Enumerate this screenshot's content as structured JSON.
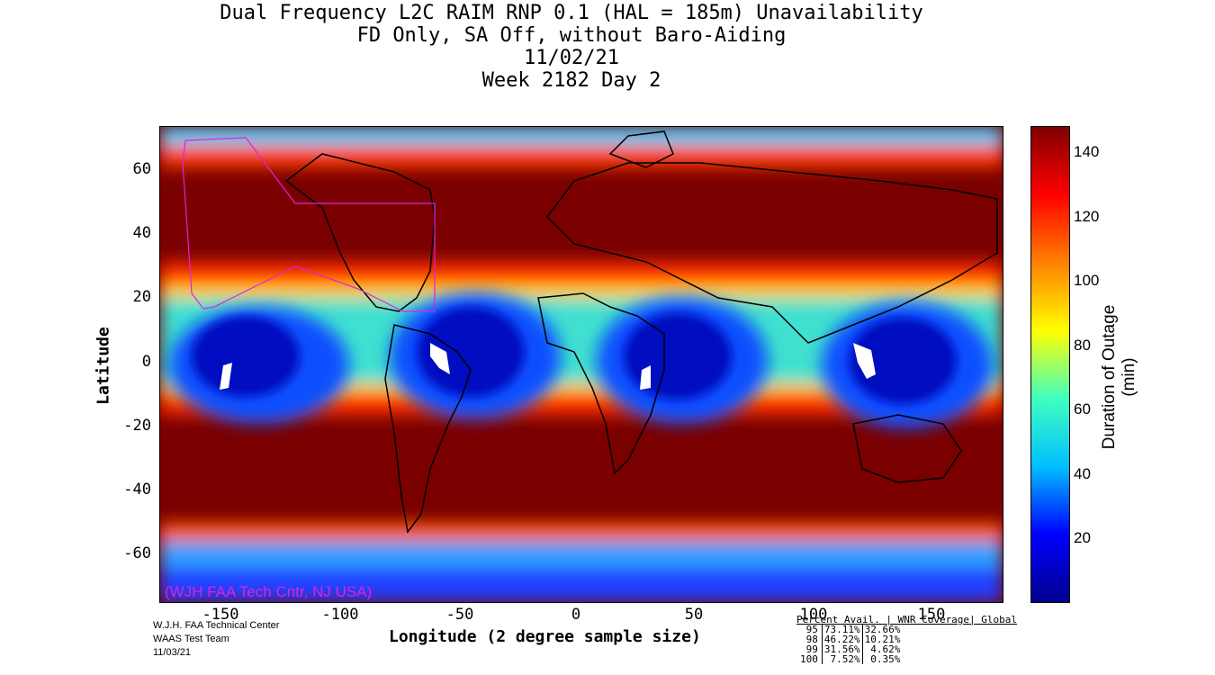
{
  "title": {
    "line1": "Dual Frequency L2C RAIM RNP 0.1 (HAL = 185m) Unavailability",
    "line2": "FD Only, SA Off, without Baro-Aiding",
    "line3": "11/02/21",
    "line4": "Week 2182 Day 2"
  },
  "axes": {
    "ylabel": "Latitude",
    "xlabel": "Longitude (2 degree sample size)",
    "lat_ticks": [
      "60",
      "40",
      "20",
      "0",
      "-20",
      "-40",
      "-60"
    ],
    "lon_ticks": [
      "-150",
      "-100",
      "-50",
      "0",
      "50",
      "100",
      "150"
    ]
  },
  "colorbar": {
    "label": "Duration of Outage (min)",
    "ticks": [
      "140",
      "120",
      "100",
      "80",
      "60",
      "40",
      "20"
    ],
    "colors": [
      "#00008f",
      "#0000ff",
      "#00bfff",
      "#40ffbf",
      "#ffff00",
      "#ff8000",
      "#ff0000",
      "#800000"
    ]
  },
  "watermark": "(WJH FAA Tech Cntr, NJ USA)",
  "credits": {
    "line1": "W.J.H. FAA Technical Center",
    "line2": "WAAS Test Team",
    "line3": "11/03/21"
  },
  "stats": {
    "header": "Percent Avail. | WNR Coverage| Global",
    "rows": [
      {
        "pct": "95",
        "wnr": "73.11%",
        "global": "32.66%"
      },
      {
        "pct": "98",
        "wnr": "46.22%",
        "global": "10.21%"
      },
      {
        "pct": "99",
        "wnr": "31.56%",
        "global": "4.62%"
      },
      {
        "pct": "100",
        "wnr": "7.52%",
        "global": "0.35%"
      }
    ]
  }
}
